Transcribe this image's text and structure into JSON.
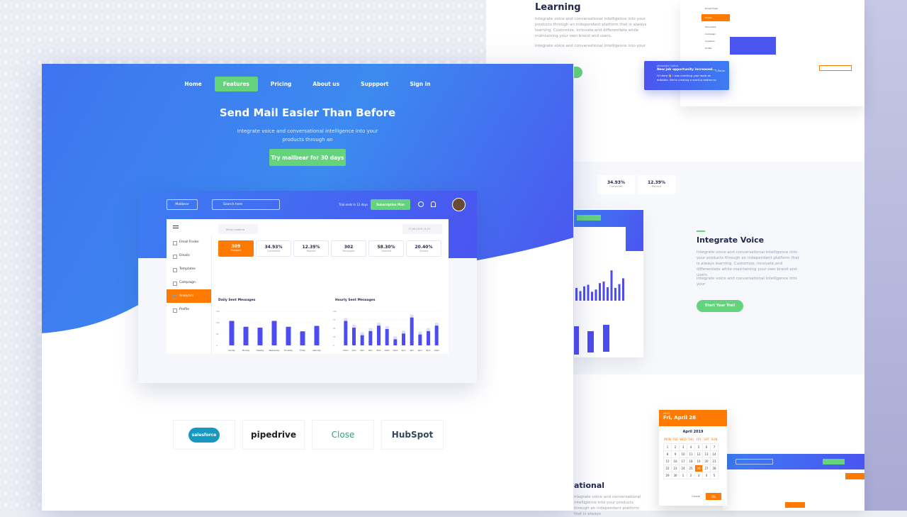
{
  "right_top": {
    "title": "Learning",
    "para": "Integrate voice and conversational intelligence into your products through an independent platform that is always learning. Customize, innovate,and differentiate while maintaining your own brand and users.",
    "para2": "Integrate voice and conversational intelligence into your",
    "notif_name": "Alexandre Collins",
    "notif_title": "New job opportunity increased...",
    "notif_time": "3 Hours",
    "notif_body": "Hi there 👋 I was checking your work on dribbble. We're creating a startup related to",
    "menu": [
      "Email Finder",
      "Emails",
      "Templates",
      "Campaign",
      "Analytics",
      "Profile"
    ]
  },
  "right_mid": {
    "title": "Integrate Voice",
    "para": "Integrate voice and conversational intelligence into your products through an independent platform that is always learning. Customize, innovate,and differentiate while maintaining your own brand and users.",
    "para2": "Integrate voice and conversational intelligence into your",
    "cta": "Start Your Trail",
    "stats": [
      {
        "v": "34.93%",
        "l": "Converted"
      },
      {
        "v": "12.39%",
        "l": "Replied"
      }
    ]
  },
  "right_bot": {
    "title": "ational",
    "para": "ntegrate voice and conversational intelligence into your products through an independent platform that is always",
    "cal": {
      "year": "2019",
      "date": "Fri, April 26",
      "month": "April 2019",
      "days": [
        "MON",
        "TUE",
        "WED",
        "THU",
        "FRI",
        "SAT",
        "SUN"
      ],
      "weeks": [
        [
          "1",
          "2",
          "3",
          "4",
          "5",
          "6",
          "7"
        ],
        [
          "8",
          "9",
          "10",
          "11",
          "12",
          "13",
          "14"
        ],
        [
          "15",
          "16",
          "17",
          "18",
          "19",
          "20",
          "21"
        ],
        [
          "22",
          "23",
          "24",
          "25",
          "26",
          "27",
          "28"
        ],
        [
          "29",
          "30",
          "1",
          "2",
          "3",
          "4",
          "5"
        ]
      ],
      "cancel": "Cancel",
      "ok": "OK"
    }
  },
  "hero": {
    "nav": [
      "Home",
      "Features",
      "Pricing",
      "About us",
      "Suppport",
      "Sign in"
    ],
    "active": "Features",
    "title": "Send Mail Easier Than Before",
    "subtitle": "Integrate voice and conversational intelligence into your products through an",
    "cta": "Try mailbear for 30 days"
  },
  "dash": {
    "brand": "Mailbear",
    "search_placeholder": "Search here",
    "trial": "Trial ends in 12 days",
    "plan": "Subscription Plan",
    "filter": "Molly carolina",
    "date": "17-05-2019 21:57",
    "menu": [
      "Email Finder",
      "Emails",
      "Templates",
      "Campaign",
      "Analytics",
      "Profile"
    ],
    "active": "Analytics",
    "stats": [
      {
        "v": "309",
        "l": "Prospect"
      },
      {
        "v": "34.93%",
        "l": "Converted"
      },
      {
        "v": "12.39%",
        "l": "Replied"
      },
      {
        "v": "302",
        "l": "Messages"
      },
      {
        "v": "58.30%",
        "l": "Opened"
      },
      {
        "v": "20.40%",
        "l": "Clicked"
      }
    ]
  },
  "chart_data": [
    {
      "type": "bar",
      "title": "Daily Sent Messages",
      "categories": [
        "Sunday",
        "Monday",
        "Tuesday",
        "Wednesday",
        "Thursday",
        "Friday",
        "Saturday"
      ],
      "values": [
        108,
        82,
        78,
        108,
        82,
        62,
        86
      ],
      "ylim": [
        0,
        150
      ],
      "yticks": [
        "0",
        "50",
        "100",
        "150"
      ]
    },
    {
      "type": "bar",
      "title": "Hourly Sent Messages",
      "categories": [
        "12am",
        "2am",
        "4am",
        "6am",
        "8am",
        "10am",
        "12pm",
        "2pm",
        "4pm",
        "6pm",
        "8pm",
        "10pm"
      ],
      "values": [
        72,
        52,
        30,
        42,
        58,
        48,
        18,
        35,
        82,
        32,
        42,
        58
      ],
      "ylim": [
        0,
        100
      ],
      "yticks": [
        "0",
        "25",
        "50",
        "75",
        "100"
      ]
    }
  ],
  "logos": [
    "salesforce",
    "pipedrive",
    "Close",
    "HubSpot"
  ],
  "colors": {
    "blue": "#3f74f0",
    "green": "#65d27c",
    "orange": "#ff7a00",
    "bar": "#4c4cf0"
  }
}
